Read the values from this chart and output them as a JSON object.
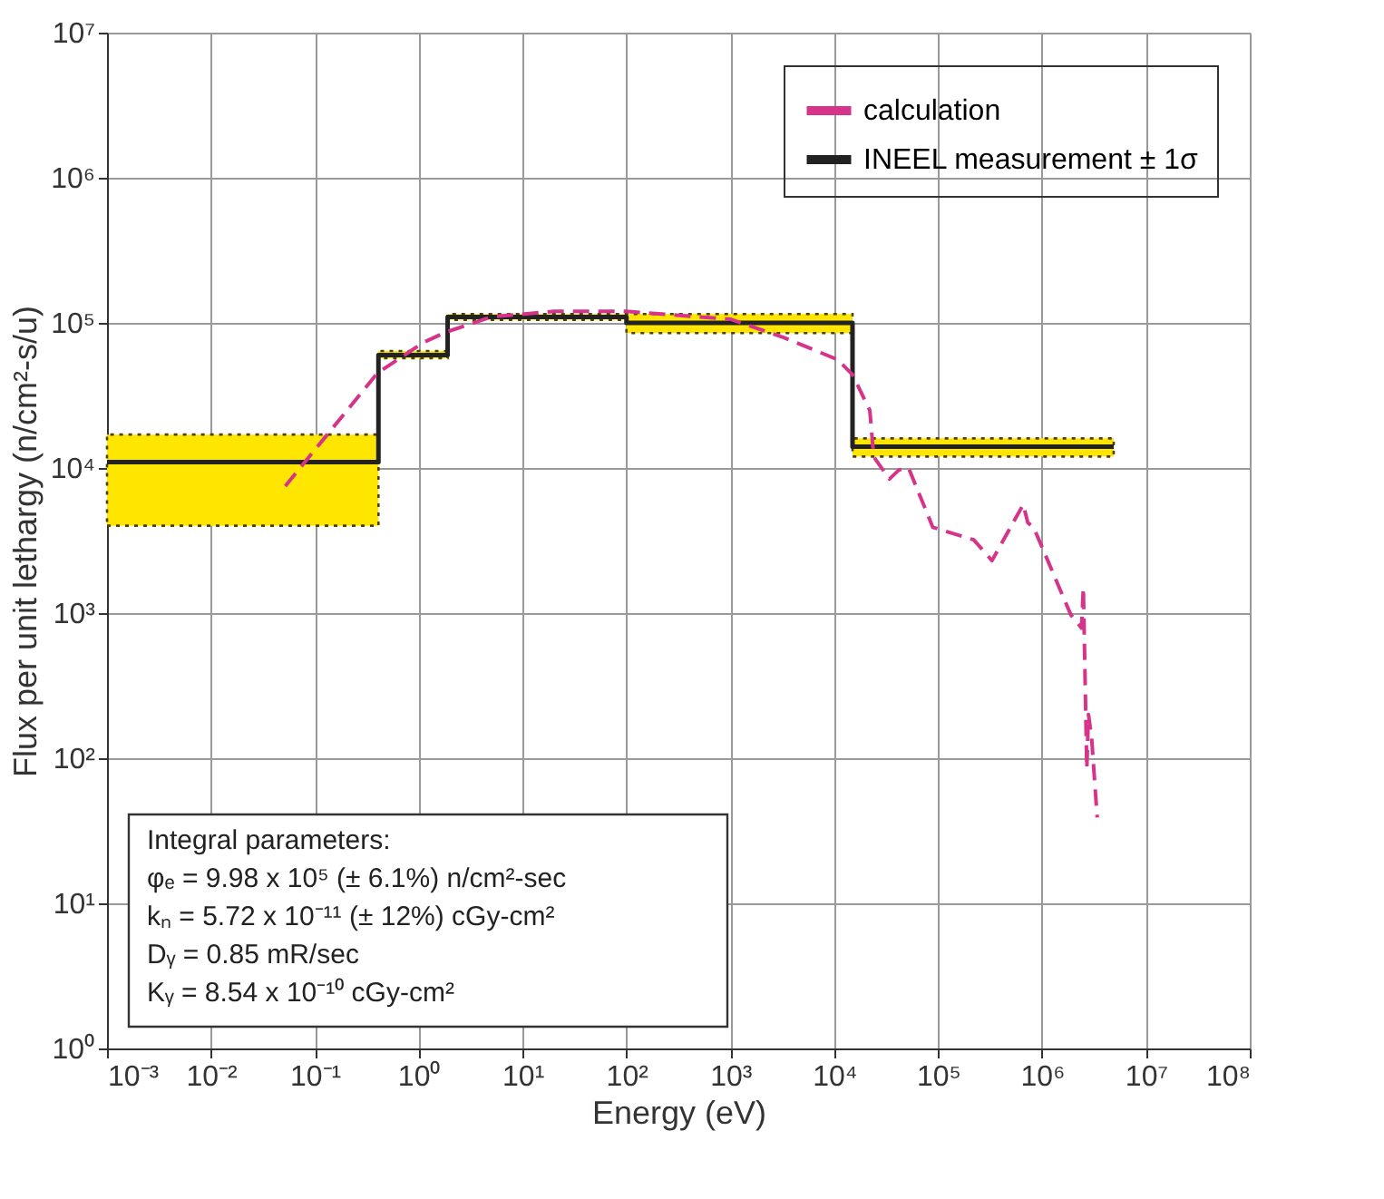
{
  "chart_data": {
    "type": "line",
    "xlabel": "Energy (eV)",
    "ylabel": "Flux per unit lethargy (n/cm²-s/u)",
    "log": "xy",
    "grid": true,
    "legend": "top right",
    "marker": "none",
    "xlim": [
      0.001,
      100000000
    ],
    "ylim": [
      1,
      10000000
    ],
    "xticks": [
      {
        "value": 0.001,
        "label": "10⁻³"
      },
      {
        "value": 0.01,
        "label": "10⁻²"
      },
      {
        "value": 0.1,
        "label": "10⁻¹"
      },
      {
        "value": 1,
        "label": "10⁰"
      },
      {
        "value": 10,
        "label": "10¹"
      },
      {
        "value": 100,
        "label": "10²"
      },
      {
        "value": 1000,
        "label": "10³"
      },
      {
        "value": 10000,
        "label": "10⁴"
      },
      {
        "value": 100000,
        "label": "10⁵"
      },
      {
        "value": 1000000,
        "label": "10⁶"
      },
      {
        "value": 10000000,
        "label": "10⁷"
      },
      {
        "value": 100000000,
        "label": "10⁸"
      }
    ],
    "yticks": [
      {
        "value": 1,
        "label": "10⁰"
      },
      {
        "value": 10,
        "label": "10¹"
      },
      {
        "value": 100,
        "label": "10²"
      },
      {
        "value": 1000,
        "label": "10³"
      },
      {
        "value": 10000,
        "label": "10⁴"
      },
      {
        "value": 100000,
        "label": "10⁵"
      },
      {
        "value": 1000000,
        "label": "10⁶"
      },
      {
        "value": 10000000,
        "label": "10⁷"
      }
    ],
    "series": [
      {
        "name": "calculation",
        "line_style": "dashed",
        "color": "#d6338a",
        "x": [
          0.052,
          0.4,
          1.1,
          1.8,
          5,
          20,
          100,
          1000,
          3300,
          10700,
          15000,
          22000,
          24000,
          26000,
          34000,
          42000,
          52000,
          89000,
          220000,
          330000,
          660000,
          730000,
          830000,
          1900000,
          2400000,
          2500000,
          2700000,
          2800000,
          3000000,
          3400000
        ],
        "values": [
          7500,
          45000,
          73000,
          86000,
          110000,
          120000,
          120000,
          106000,
          79000,
          56000,
          44000,
          25000,
          12000,
          11000,
          8400,
          9700,
          10000,
          3900,
          3200,
          2300,
          5600,
          4200,
          3900,
          970,
          790,
          1500,
          85,
          200,
          140,
          39
        ]
      },
      {
        "name": "INEEL measurement ± 1σ",
        "type": "step",
        "line_style": "solid",
        "color": "#222222",
        "x": [
          0.001,
          0.41,
          1.9,
          100,
          15000,
          4900000
        ],
        "values": [
          11000,
          60000,
          110000,
          100000,
          14000,
          14000
        ],
        "lower": [
          4000,
          57000,
          105000,
          85000,
          12000,
          12000
        ],
        "upper": [
          17000,
          64000,
          115000,
          115000,
          16000,
          16000
        ]
      }
    ],
    "annotations": [
      "Integral parameters:",
      "φₑ = 9.98 x 10⁵ (± 6.1%) n/cm²-sec",
      "kₙ = 5.72 x 10⁻¹¹ (± 12%) cGy-cm²",
      "Dᵧ = 0.85 mR/sec",
      "Kᵧ = 8.54 x 10⁻¹⁰ cGy-cm²"
    ]
  }
}
